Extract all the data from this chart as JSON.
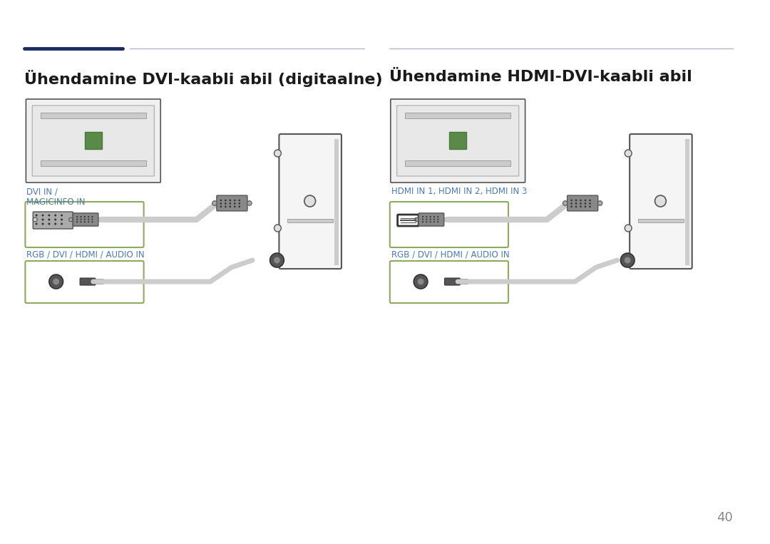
{
  "bg_color": "#ffffff",
  "page_number": "40",
  "title_left": "Ühendamine DVI-kaabli abil (digitaalne)",
  "title_right": "Ühendamine HDMI-DVI-kaabli abil",
  "label_dvi": "DVI IN /\nMAGICINFO IN",
  "label_rgb_left": "RGB / DVI / HDMI / AUDIO IN",
  "label_hdmi": "HDMI IN 1, HDMI IN 2, HDMI IN 3",
  "label_rgb_right": "RGB / DVI / HDMI / AUDIO IN",
  "line_color_dark": "#1a2b5e",
  "line_color_light": "#b0b8cc",
  "box_border_color": "#8faa5c",
  "label_color": "#4a7ab5",
  "text_color": "#1a1a1a"
}
